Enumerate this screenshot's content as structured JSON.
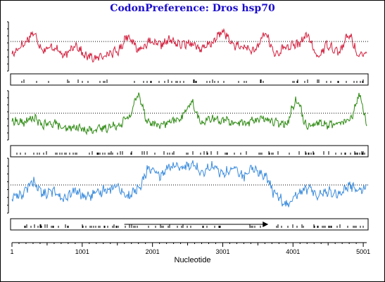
{
  "chart_data": {
    "type": "line",
    "title": "CodonPreference: Dros hsp70",
    "xlabel": "Nucleotide",
    "xlim": [
      1,
      5050
    ],
    "x_ticks": [
      1,
      1001,
      2001,
      3001,
      4001,
      5001
    ],
    "x_tick_labels": [
      "1",
      "1001",
      "2001",
      "3001",
      "4001",
      "5001"
    ],
    "y_axis_labels": "none",
    "reading_frames": [
      {
        "frame": 1,
        "color": "#d21e3c",
        "threshold_line": "dotted",
        "x": [
          1,
          150,
          300,
          450,
          600,
          750,
          900,
          1050,
          1200,
          1350,
          1500,
          1650,
          1800,
          1950,
          2100,
          2250,
          2400,
          2550,
          2700,
          2850,
          3000,
          3150,
          3300,
          3450,
          3600,
          3750,
          3900,
          4050,
          4200,
          4350,
          4500,
          4650,
          4800,
          4950,
          5050
        ],
        "values": [
          0.35,
          0.55,
          0.8,
          0.45,
          0.5,
          0.3,
          0.55,
          0.3,
          0.25,
          0.35,
          0.4,
          0.75,
          0.45,
          0.6,
          0.55,
          0.65,
          0.55,
          0.6,
          0.45,
          0.6,
          0.85,
          0.55,
          0.5,
          0.4,
          0.8,
          0.35,
          0.5,
          0.55,
          0.75,
          0.3,
          0.55,
          0.4,
          0.75,
          0.3,
          0.35
        ],
        "codon_markers": "black ticks below trace"
      },
      {
        "frame": 2,
        "color": "#2e8a12",
        "threshold_line": "dotted",
        "x": [
          1,
          150,
          300,
          450,
          600,
          750,
          900,
          1050,
          1200,
          1350,
          1500,
          1650,
          1800,
          1950,
          2100,
          2250,
          2400,
          2550,
          2700,
          2850,
          3000,
          3150,
          3300,
          3450,
          3600,
          3750,
          3900,
          4050,
          4200,
          4350,
          4500,
          4650,
          4800,
          4950,
          5050
        ],
        "values": [
          0.4,
          0.35,
          0.45,
          0.3,
          0.35,
          0.2,
          0.25,
          0.2,
          0.2,
          0.25,
          0.3,
          0.45,
          0.95,
          0.35,
          0.3,
          0.35,
          0.45,
          0.8,
          0.35,
          0.45,
          0.4,
          0.35,
          0.35,
          0.4,
          0.45,
          0.35,
          0.35,
          0.85,
          0.3,
          0.35,
          0.3,
          0.35,
          0.4,
          0.95,
          0.35
        ],
        "codon_markers": "black ticks below trace"
      },
      {
        "frame": 3,
        "color": "#3c8cdc",
        "threshold_line": "dotted",
        "x": [
          1,
          150,
          300,
          450,
          600,
          750,
          900,
          1050,
          1200,
          1350,
          1500,
          1650,
          1800,
          1950,
          2100,
          2250,
          2400,
          2550,
          2700,
          2850,
          3000,
          3150,
          3300,
          3450,
          3600,
          3750,
          3900,
          4050,
          4200,
          4350,
          4500,
          4650,
          4800,
          4950,
          5050
        ],
        "values": [
          0.3,
          0.35,
          0.6,
          0.35,
          0.4,
          0.25,
          0.4,
          0.3,
          0.35,
          0.45,
          0.5,
          0.3,
          0.45,
          0.85,
          0.7,
          0.9,
          0.85,
          0.95,
          0.8,
          0.9,
          0.75,
          0.85,
          0.7,
          0.85,
          0.7,
          0.35,
          0.15,
          0.35,
          0.45,
          0.35,
          0.4,
          0.35,
          0.5,
          0.45,
          0.5
        ],
        "codon_markers": "black ticks below trace",
        "open_reading_frame_arrow": {
          "start": 1600,
          "end": 3650,
          "direction": "right"
        }
      }
    ]
  }
}
